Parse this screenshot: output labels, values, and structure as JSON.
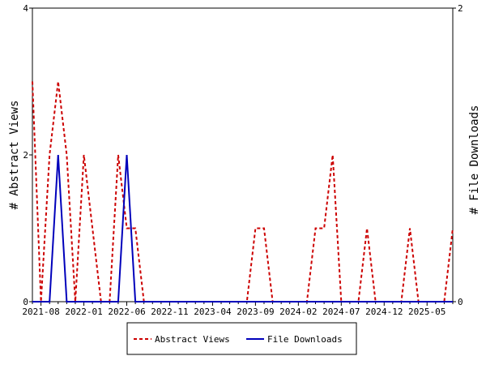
{
  "chart_data": {
    "type": "line",
    "title": "",
    "ylabel": "# Abstract Views",
    "y2label": "# File Downloads",
    "ylim": [
      0,
      4
    ],
    "y2lim": [
      0,
      2
    ],
    "yticks": [
      0,
      2,
      4
    ],
    "y2ticks": [
      0,
      2
    ],
    "x_tick_labels": [
      "2021-08",
      "2022-01",
      "2022-06",
      "2022-11",
      "2023-04",
      "2023-09",
      "2024-02",
      "2024-07",
      "2024-12",
      "2025-05"
    ],
    "x_start_label": "2021-07",
    "grid": false,
    "legend_position": "bottom",
    "x": [
      "2021-07",
      "2021-08",
      "2021-09",
      "2021-10",
      "2021-11",
      "2021-12",
      "2022-01",
      "2022-02",
      "2022-03",
      "2022-04",
      "2022-05",
      "2022-06",
      "2022-07",
      "2022-08",
      "2022-09",
      "2022-10",
      "2022-11",
      "2022-12",
      "2023-01",
      "2023-02",
      "2023-03",
      "2023-04",
      "2023-05",
      "2023-06",
      "2023-07",
      "2023-08",
      "2023-09",
      "2023-10",
      "2023-11",
      "2023-12",
      "2024-01",
      "2024-02",
      "2024-03",
      "2024-04",
      "2024-05",
      "2024-06",
      "2024-07",
      "2024-08",
      "2024-09",
      "2024-10",
      "2024-11",
      "2024-12",
      "2025-01",
      "2025-02",
      "2025-03",
      "2025-04",
      "2025-05",
      "2025-06",
      "2025-07",
      "2025-08"
    ],
    "series": [
      {
        "name": "Abstract Views",
        "axis": "left",
        "color": "#cc0000",
        "style": "dashed",
        "values": [
          3,
          0,
          2,
          3,
          2,
          0,
          2,
          1,
          0,
          0,
          2,
          1,
          1,
          0,
          0,
          0,
          0,
          0,
          0,
          0,
          0,
          0,
          0,
          0,
          0,
          0,
          1,
          1,
          0,
          0,
          0,
          0,
          0,
          1,
          1,
          2,
          0,
          0,
          0,
          1,
          0,
          0,
          0,
          0,
          1,
          0,
          0,
          0,
          0,
          1
        ]
      },
      {
        "name": "File Downloads",
        "axis": "right",
        "color": "#0000bb",
        "style": "solid",
        "values": [
          0,
          0,
          0,
          1,
          0,
          0,
          0,
          0,
          0,
          0,
          0,
          1,
          0,
          0,
          0,
          0,
          0,
          0,
          0,
          0,
          0,
          0,
          0,
          0,
          0,
          0,
          0,
          0,
          0,
          0,
          0,
          0,
          0,
          0,
          0,
          0,
          0,
          0,
          0,
          0,
          0,
          0,
          0,
          0,
          0,
          0,
          0,
          0,
          0,
          0
        ]
      }
    ]
  }
}
